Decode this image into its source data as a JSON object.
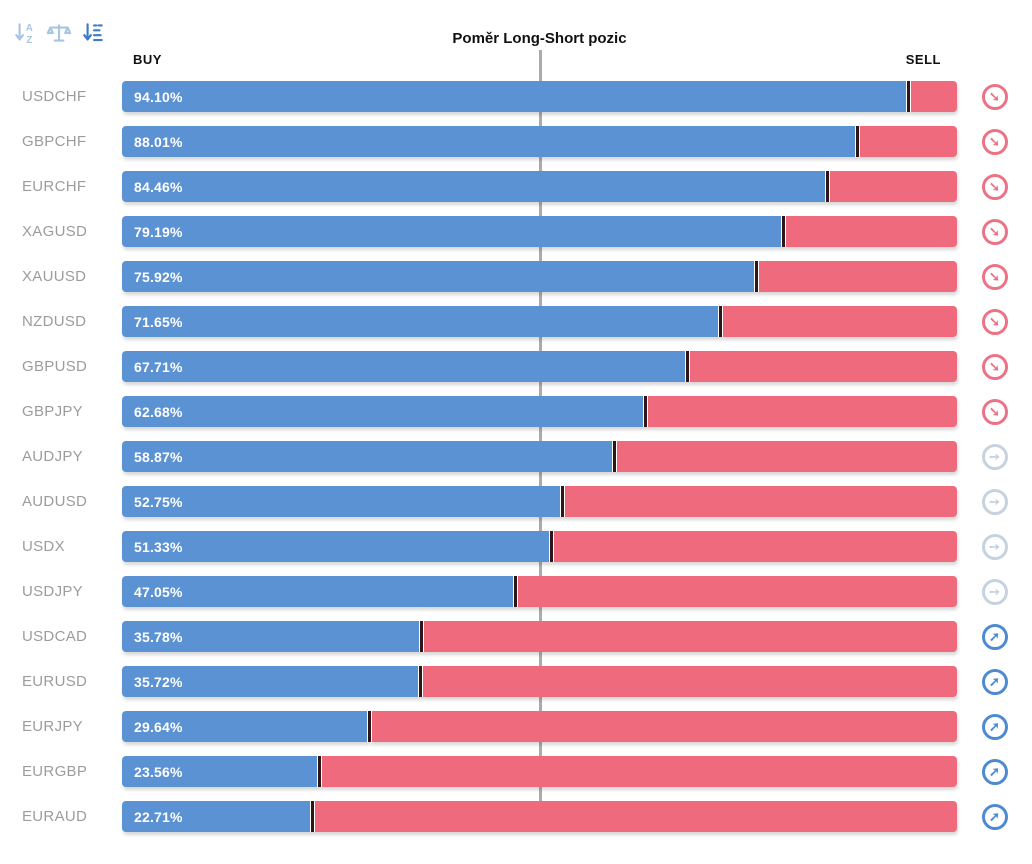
{
  "header": {
    "title": "Poměr Long-Short pozic",
    "buy_label": "BUY",
    "sell_label": "SELL"
  },
  "toolbar": {
    "sort_alpha_icon": "sort-alphabetical",
    "balance_icon": "balance-scale",
    "sort_amount_icon": "sort-by-value",
    "inactive_color": "#aac5e2",
    "active_color": "#3e7cc2"
  },
  "chart_data": {
    "type": "bar",
    "orientation": "horizontal-stacked",
    "title": "Poměr Long-Short pozic",
    "series_names": [
      "BUY",
      "SELL"
    ],
    "xlim": [
      0,
      100
    ],
    "buy_color": "#5b92d4",
    "sell_color": "#f06a7d",
    "divider_color": "#2f1418",
    "centerline_color": "#ababab",
    "rows": [
      {
        "symbol": "USDCHF",
        "buy": 94.1,
        "buy_label": "94.10%",
        "sell_label": "5.90%",
        "trend": "down"
      },
      {
        "symbol": "GBPCHF",
        "buy": 88.01,
        "buy_label": "88.01%",
        "sell_label": "11.99%",
        "trend": "down"
      },
      {
        "symbol": "EURCHF",
        "buy": 84.46,
        "buy_label": "84.46%",
        "sell_label": "15.54%",
        "trend": "down"
      },
      {
        "symbol": "XAGUSD",
        "buy": 79.19,
        "buy_label": "79.19%",
        "sell_label": "20.81%",
        "trend": "down"
      },
      {
        "symbol": "XAUUSD",
        "buy": 75.92,
        "buy_label": "75.92%",
        "sell_label": "24.08%",
        "trend": "down"
      },
      {
        "symbol": "NZDUSD",
        "buy": 71.65,
        "buy_label": "71.65%",
        "sell_label": "28.35%",
        "trend": "down"
      },
      {
        "symbol": "GBPUSD",
        "buy": 67.71,
        "buy_label": "67.71%",
        "sell_label": "32.29%",
        "trend": "down"
      },
      {
        "symbol": "GBPJPY",
        "buy": 62.68,
        "buy_label": "62.68%",
        "sell_label": "37.32%",
        "trend": "down"
      },
      {
        "symbol": "AUDJPY",
        "buy": 58.87,
        "buy_label": "58.87%",
        "sell_label": "41.13%",
        "trend": "flat"
      },
      {
        "symbol": "AUDUSD",
        "buy": 52.75,
        "buy_label": "52.75%",
        "sell_label": "47.25%",
        "trend": "flat"
      },
      {
        "symbol": "USDX",
        "buy": 51.33,
        "buy_label": "51.33%",
        "sell_label": "48.67%",
        "trend": "flat"
      },
      {
        "symbol": "USDJPY",
        "buy": 47.05,
        "buy_label": "47.05%",
        "sell_label": "52.95%",
        "trend": "flat"
      },
      {
        "symbol": "USDCAD",
        "buy": 35.78,
        "buy_label": "35.78%",
        "sell_label": "64.22%",
        "trend": "up"
      },
      {
        "symbol": "EURUSD",
        "buy": 35.72,
        "buy_label": "35.72%",
        "sell_label": "64.28%",
        "trend": "up"
      },
      {
        "symbol": "EURJPY",
        "buy": 29.64,
        "buy_label": "29.64%",
        "sell_label": "70.36%",
        "trend": "up"
      },
      {
        "symbol": "EURGBP",
        "buy": 23.56,
        "buy_label": "23.56%",
        "sell_label": "76.44%",
        "trend": "up"
      },
      {
        "symbol": "EURAUD",
        "buy": 22.71,
        "buy_label": "22.71%",
        "sell_label": "77.29%",
        "trend": "up"
      }
    ],
    "trend_icons": {
      "down": {
        "name": "trend-down-icon",
        "glyph": "➘",
        "color": "#ee7285"
      },
      "flat": {
        "name": "trend-flat-icon",
        "glyph": "➙",
        "color": "#c7d2e0"
      },
      "up": {
        "name": "trend-up-icon",
        "glyph": "➚",
        "color": "#4e8ad2"
      }
    }
  }
}
